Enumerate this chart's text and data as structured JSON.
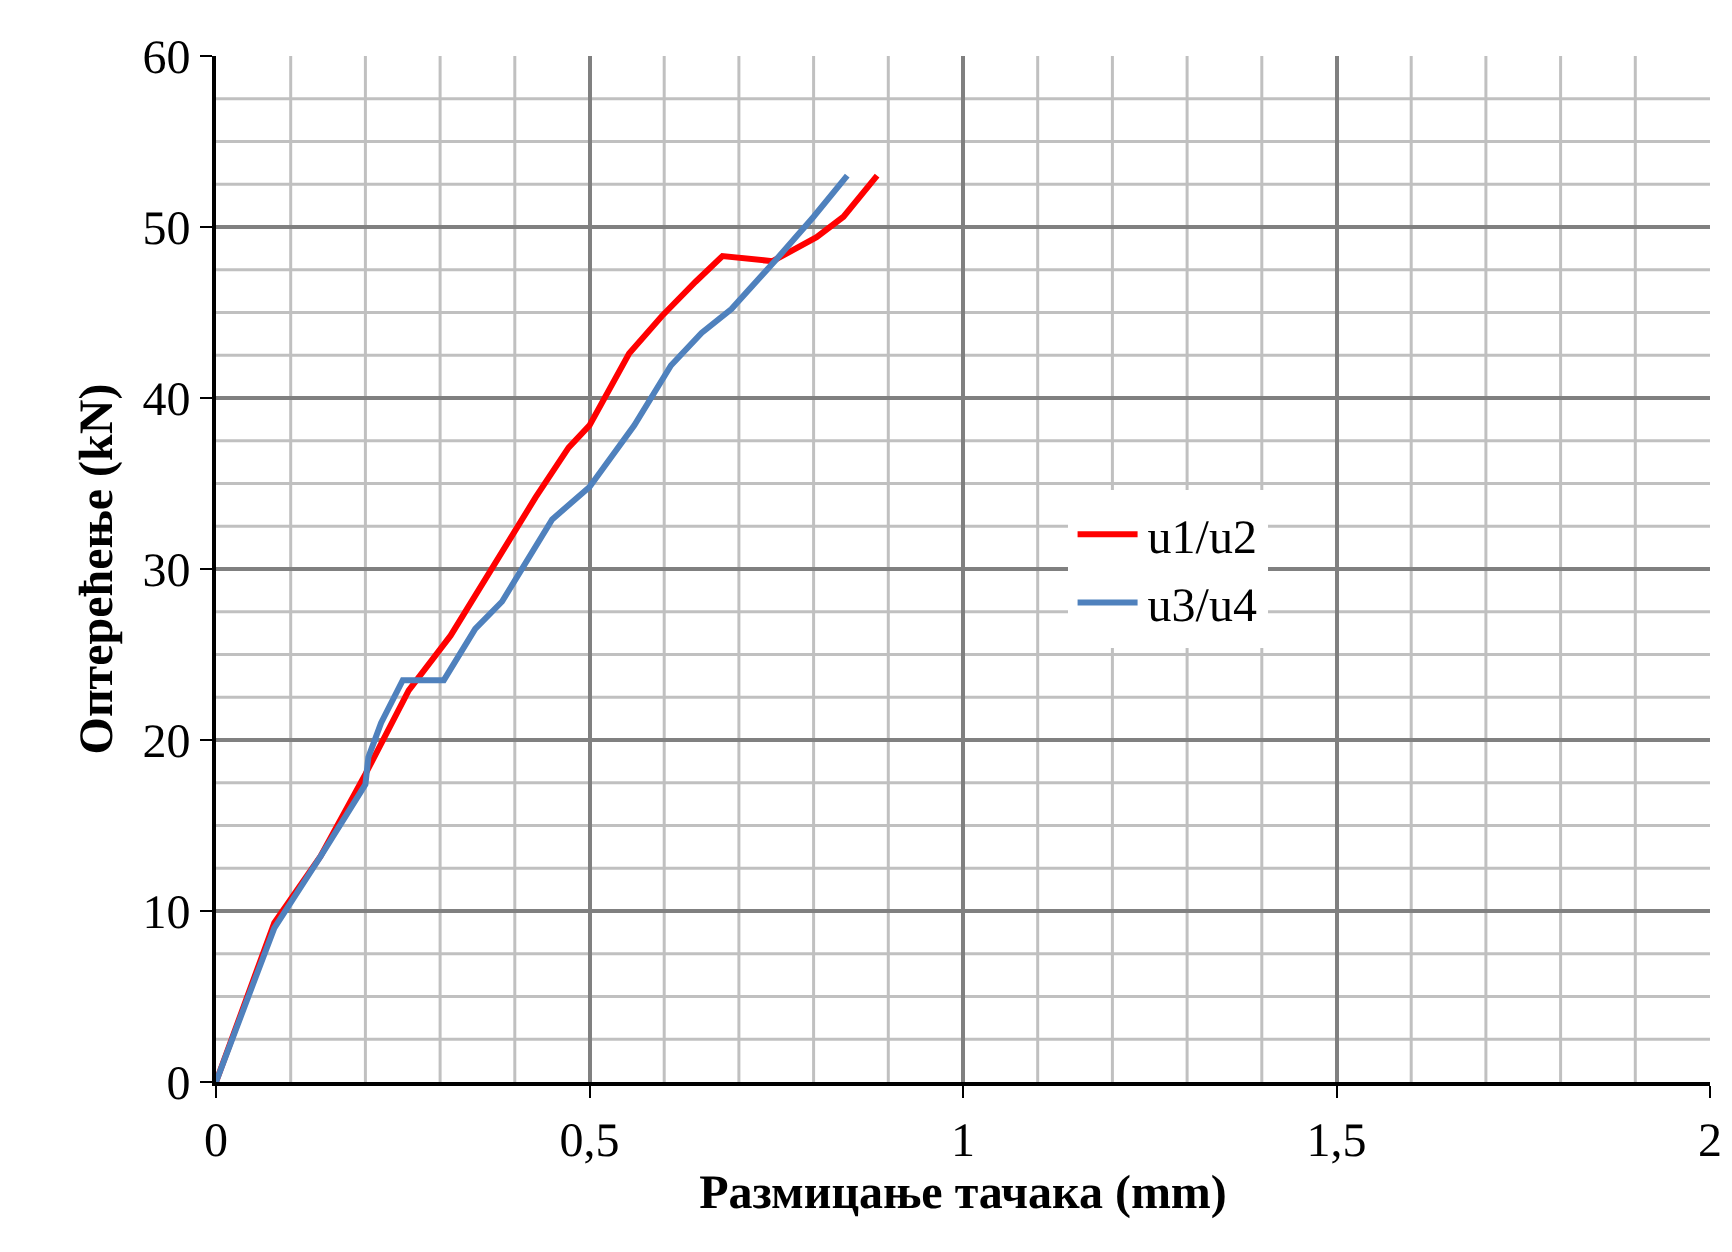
{
  "chart_data": {
    "type": "line",
    "xlabel": "Размицање тачака (mm)",
    "ylabel": "Оптерећење (kN)",
    "xlim": [
      0,
      2
    ],
    "xticks": [
      0,
      {
        "value": 0.5,
        "label": "0,5"
      },
      1,
      {
        "value": 1.5,
        "label": "1,5"
      },
      2
    ],
    "ylim": [
      0,
      60
    ],
    "yticks": [
      0,
      10,
      20,
      30,
      40,
      50,
      60
    ],
    "grid": true,
    "legend": "right",
    "marker": "none",
    "line_style": "solid",
    "series": [
      {
        "name": "u1/u2",
        "color": "#ff0000",
        "x": [
          0,
          0.078,
          0.14,
          0.2,
          0.258,
          0.314,
          0.39,
          0.428,
          0.472,
          0.5,
          0.553,
          0.597,
          0.642,
          0.678,
          0.745,
          0.804,
          0.84,
          0.885
        ],
        "values": [
          0,
          9.3,
          13.2,
          18,
          22.9,
          26.1,
          31.5,
          34.2,
          37.1,
          38.4,
          42.6,
          44.8,
          46.8,
          48.3,
          48,
          49.4,
          50.6,
          53
        ]
      },
      {
        "name": "u3/u4",
        "color": "#4f81bd",
        "x": [
          0,
          0.078,
          0.14,
          0.2,
          0.204,
          0.221,
          0.25,
          0.305,
          0.347,
          0.383,
          0.45,
          0.5,
          0.56,
          0.609,
          0.65,
          0.69,
          0.75,
          0.8,
          0.845
        ],
        "values": [
          0,
          9,
          13.2,
          17.4,
          19,
          21,
          23.5,
          23.5,
          26.5,
          28.1,
          32.9,
          34.8,
          38.4,
          41.9,
          43.8,
          45.2,
          48.1,
          50.6,
          53
        ]
      }
    ]
  }
}
